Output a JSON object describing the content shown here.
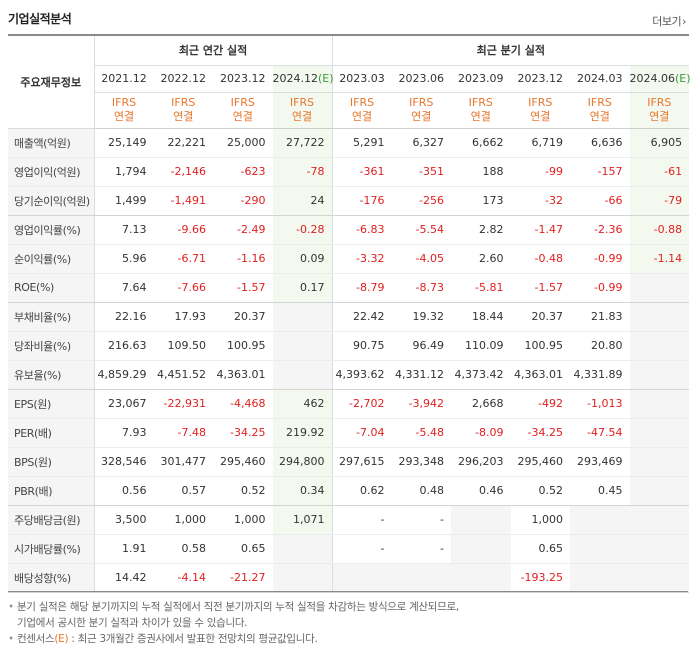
{
  "header": {
    "title": "기업실적분석",
    "more_label": "더보기"
  },
  "table": {
    "corner_label": "주요재무정보",
    "annual_group": "최근 연간 실적",
    "quarter_group": "최근 분기 실적",
    "periods": [
      "2021.12",
      "2022.12",
      "2023.12",
      "2024.12",
      "2023.03",
      "2023.06",
      "2023.09",
      "2023.12",
      "2024.03",
      "2024.06"
    ],
    "estimate_suffix": "(E)",
    "ifrs_top": "IFRS",
    "ifrs_bottom": "연결",
    "rows": [
      {
        "label": "매출액(억원)",
        "values": [
          "25,149",
          "22,221",
          "25,000",
          "27,722",
          "5,291",
          "6,327",
          "6,662",
          "6,719",
          "6,636",
          "6,905"
        ]
      },
      {
        "label": "영업이익(억원)",
        "values": [
          "1,794",
          "-2,146",
          "-623",
          "-78",
          "-361",
          "-351",
          "188",
          "-99",
          "-157",
          "-61"
        ]
      },
      {
        "label": "당기순이익(억원)",
        "values": [
          "1,499",
          "-1,491",
          "-290",
          "24",
          "-176",
          "-256",
          "173",
          "-32",
          "-66",
          "-79"
        ]
      },
      {
        "label": "영업이익률(%)",
        "values": [
          "7.13",
          "-9.66",
          "-2.49",
          "-0.28",
          "-6.83",
          "-5.54",
          "2.82",
          "-1.47",
          "-2.36",
          "-0.88"
        ]
      },
      {
        "label": "순이익률(%)",
        "values": [
          "5.96",
          "-6.71",
          "-1.16",
          "0.09",
          "-3.32",
          "-4.05",
          "2.60",
          "-0.48",
          "-0.99",
          "-1.14"
        ]
      },
      {
        "label": "ROE(%)",
        "values": [
          "7.64",
          "-7.66",
          "-1.57",
          "0.17",
          "-8.79",
          "-8.73",
          "-5.81",
          "-1.57",
          "-0.99",
          ""
        ]
      },
      {
        "label": "부채비율(%)",
        "values": [
          "22.16",
          "17.93",
          "20.37",
          "",
          "22.42",
          "19.32",
          "18.44",
          "20.37",
          "21.83",
          ""
        ]
      },
      {
        "label": "당좌비율(%)",
        "values": [
          "216.63",
          "109.50",
          "100.95",
          "",
          "90.75",
          "96.49",
          "110.09",
          "100.95",
          "20.80",
          ""
        ]
      },
      {
        "label": "유보율(%)",
        "values": [
          "4,859.29",
          "4,451.52",
          "4,363.01",
          "",
          "4,393.62",
          "4,331.12",
          "4,373.42",
          "4,363.01",
          "4,331.89",
          ""
        ]
      },
      {
        "label": "EPS(원)",
        "values": [
          "23,067",
          "-22,931",
          "-4,468",
          "462",
          "-2,702",
          "-3,942",
          "2,668",
          "-492",
          "-1,013",
          ""
        ]
      },
      {
        "label": "PER(배)",
        "values": [
          "7.93",
          "-7.48",
          "-34.25",
          "219.92",
          "-7.04",
          "-5.48",
          "-8.09",
          "-34.25",
          "-47.54",
          ""
        ]
      },
      {
        "label": "BPS(원)",
        "values": [
          "328,546",
          "301,477",
          "295,460",
          "294,800",
          "297,615",
          "293,348",
          "296,203",
          "295,460",
          "293,469",
          ""
        ]
      },
      {
        "label": "PBR(배)",
        "values": [
          "0.56",
          "0.57",
          "0.52",
          "0.34",
          "0.62",
          "0.48",
          "0.46",
          "0.52",
          "0.45",
          ""
        ]
      },
      {
        "label": "주당배당금(원)",
        "values": [
          "3,500",
          "1,000",
          "1,000",
          "1,071",
          "-",
          "-",
          "",
          "1,000",
          "",
          ""
        ]
      },
      {
        "label": "시가배당률(%)",
        "values": [
          "1.91",
          "0.58",
          "0.65",
          "",
          "-",
          "-",
          "",
          "0.65",
          "",
          ""
        ]
      },
      {
        "label": "배당성향(%)",
        "values": [
          "14.42",
          "-4.14",
          "-21.27",
          "",
          "",
          "",
          "",
          "-193.25",
          "",
          ""
        ]
      }
    ]
  },
  "notes": {
    "line1": "분기 실적은 해당 분기까지의 누적 실적에서 직전 분기까지의 누적 실적을 차감하는 방식으로 계산되므로,",
    "line2": "기업에서 공시한 분기 실적과 차이가 있을 수 있습니다.",
    "line3_prefix": "컨센서스",
    "line3_e": "(E)",
    "line3_suffix": ": 최근 3개월간 증권사에서 발표한 전망치의 평균값입니다."
  },
  "colors": {
    "negative": "#e01f1f",
    "ifrs": "#e8762b",
    "estimate_bg": "#f4f9ef",
    "estimate_mark": "#3a9a3a"
  }
}
